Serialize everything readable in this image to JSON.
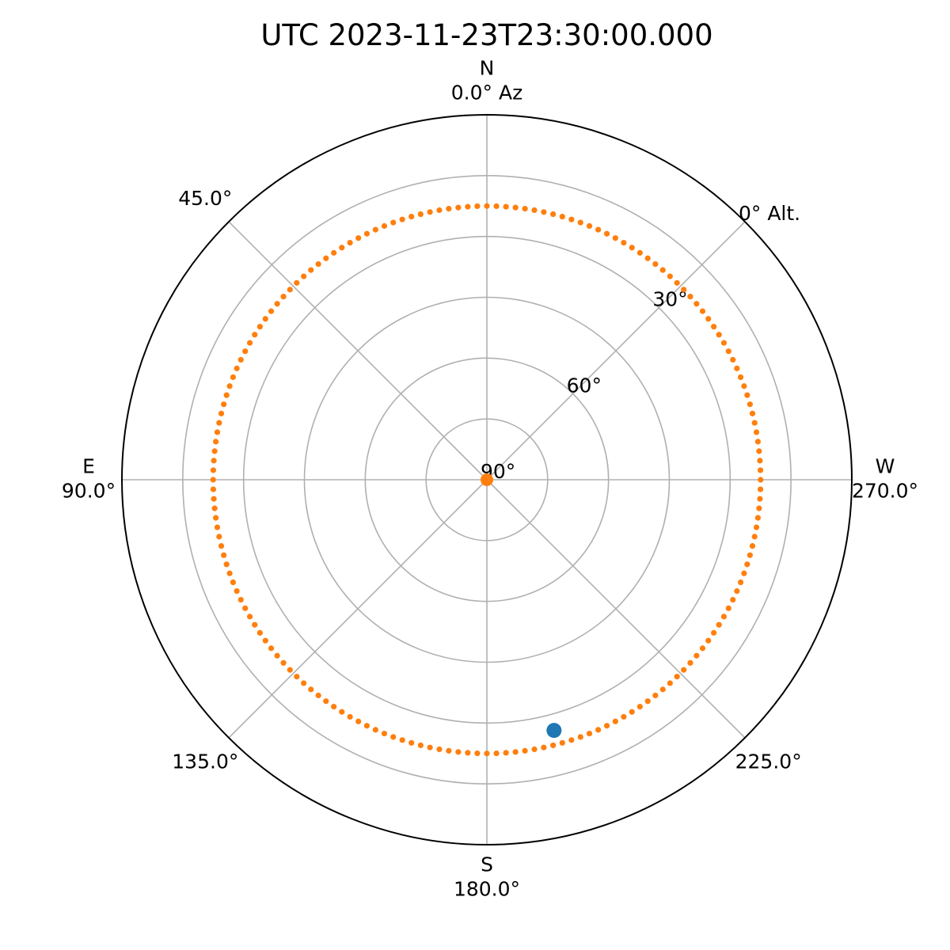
{
  "chart_data": {
    "type": "scatter",
    "projection": "polar",
    "title": "UTC 2023-11-23T23:30:00.000",
    "theta_zero": "N",
    "theta_direction": "counterclockwise",
    "azimuth_tick_labels": [
      {
        "az": 0,
        "cardinal": "N",
        "label": "0.0° Az"
      },
      {
        "az": 45,
        "cardinal": "",
        "label": "45.0°"
      },
      {
        "az": 90,
        "cardinal": "E",
        "label": "90.0°"
      },
      {
        "az": 135,
        "cardinal": "",
        "label": "135.0°"
      },
      {
        "az": 180,
        "cardinal": "S",
        "label": "180.0°"
      },
      {
        "az": 225,
        "cardinal": "",
        "label": "225.0°"
      },
      {
        "az": 270,
        "cardinal": "W",
        "label": "270.0°"
      }
    ],
    "altitude_range": [
      0,
      90
    ],
    "altitude_gridlines": [
      0,
      15,
      30,
      45,
      60,
      75,
      90
    ],
    "altitude_tick_labels": [
      {
        "alt": 0,
        "label": "0° Alt."
      },
      {
        "alt": 30,
        "label": "30°"
      },
      {
        "alt": 60,
        "label": "60°"
      },
      {
        "alt": 90,
        "label": "90°"
      }
    ],
    "altitude_label_az": 315,
    "grid": true,
    "series": [
      {
        "color": "#ff7f0e",
        "marker_size": "small",
        "points_description": "ring of points at constant altitude around all azimuths",
        "ring_altitude": 22.5,
        "ring_point_count": 180,
        "extra_points": [
          {
            "az": 0,
            "alt": 90
          }
        ]
      },
      {
        "color": "#1f77b4",
        "marker_size": "large",
        "points": [
          {
            "az": 195,
            "alt": 26
          }
        ]
      }
    ]
  }
}
